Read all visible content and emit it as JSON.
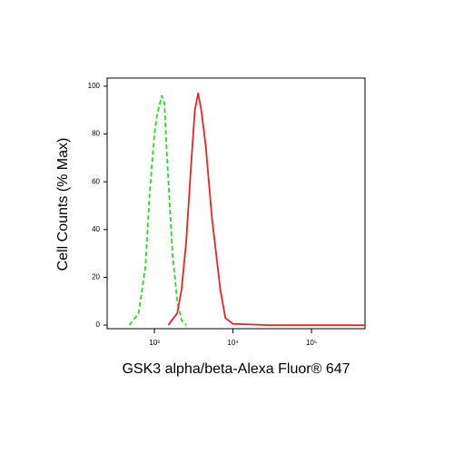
{
  "chart_data": {
    "type": "line",
    "x_label": "GSK3 alpha/beta-Alexa Fluor® 647",
    "y_label": "Cell Counts (% Max)",
    "xscale": "log",
    "xlim": [
      250,
      480000
    ],
    "ylim": [
      -1.5,
      103.4
    ],
    "xticks": [
      {
        "value": 1000,
        "label": "10³"
      },
      {
        "value": 10000,
        "label": "10⁴"
      },
      {
        "value": 100000,
        "label": "10⁵"
      }
    ],
    "yticks": [
      0,
      20,
      40,
      60,
      80,
      100
    ],
    "series": [
      {
        "color": "#22dd22",
        "dashed": true,
        "x": [
          480,
          630,
          770,
          870,
          1000,
          1080,
          1240,
          1340,
          1450,
          1700,
          1950,
          2220,
          2540
        ],
        "values": [
          0,
          5,
          25,
          55,
          80,
          88,
          96,
          93,
          70,
          30,
          10,
          2,
          0
        ]
      },
      {
        "color": "#ee2222",
        "dashed": false,
        "x": [
          1500,
          1950,
          2220,
          2540,
          2900,
          3270,
          3600,
          3950,
          4500,
          5400,
          6900,
          8000,
          10000,
          30000,
          100000,
          480000
        ],
        "values": [
          0,
          5,
          15,
          35,
          65,
          90,
          97,
          90,
          75,
          45,
          15,
          3,
          0.5,
          0,
          0,
          0
        ]
      }
    ]
  }
}
